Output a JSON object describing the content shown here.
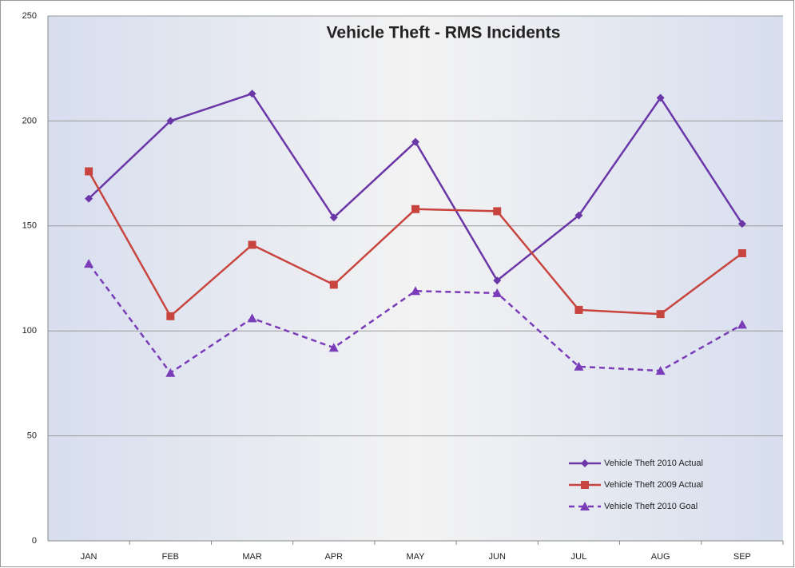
{
  "chart_data": {
    "type": "line",
    "title": "Vehicle Theft - RMS Incidents",
    "categories": [
      "JAN",
      "FEB",
      "MAR",
      "APR",
      "MAY",
      "JUN",
      "JUL",
      "AUG",
      "SEP"
    ],
    "series": [
      {
        "name": "Vehicle Theft 2010 Actual",
        "color": "#6a36a8",
        "marker": "diamond",
        "dashed": false,
        "values": [
          163,
          200,
          213,
          154,
          190,
          124,
          155,
          211,
          151
        ]
      },
      {
        "name": "Vehicle Theft 2009 Actual",
        "color": "#c8453f",
        "marker": "square",
        "dashed": false,
        "values": [
          176,
          107,
          141,
          122,
          158,
          157,
          110,
          108,
          137
        ]
      },
      {
        "name": "Vehicle Theft 2010 Goal",
        "color": "#7a3cb8",
        "marker": "triangle",
        "dashed": true,
        "values": [
          132,
          80,
          106,
          92,
          119,
          118,
          83,
          81,
          103
        ]
      }
    ],
    "ylim": [
      0,
      250
    ],
    "yticks": [
      0,
      50,
      100,
      150,
      200,
      250
    ],
    "grid": true,
    "legend": "lower right"
  }
}
